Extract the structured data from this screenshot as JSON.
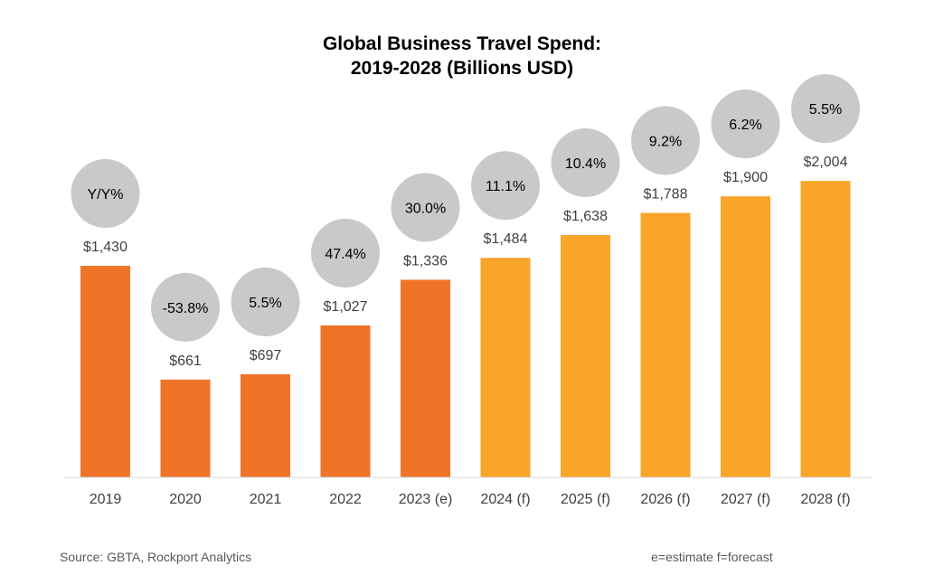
{
  "chart_data": {
    "type": "bar",
    "title_line1": "Global Business Travel Spend:",
    "title_line2": "2019-2028 (Billions USD)",
    "categories": [
      "2019",
      "2020",
      "2021",
      "2022",
      "2023 (e)",
      "2024 (f)",
      "2025 (f)",
      "2026 (f)",
      "2027 (f)",
      "2028 (f)"
    ],
    "values": [
      1430,
      661,
      697,
      1027,
      1336,
      1484,
      1638,
      1788,
      1900,
      2004
    ],
    "value_labels": [
      "$1,430",
      "$661",
      "$697",
      "$1,027",
      "$1,336",
      "$1,484",
      "$1,638",
      "$1,788",
      "$1,900",
      "$2,004"
    ],
    "yoy_labels": [
      "Y/Y%",
      "-53.8%",
      "5.5%",
      "47.4%",
      "30.0%",
      "11.1%",
      "10.4%",
      "9.2%",
      "6.2%",
      "5.5%"
    ],
    "bar_types": [
      "actual",
      "actual",
      "actual",
      "actual",
      "actual",
      "forecast",
      "forecast",
      "forecast",
      "forecast",
      "forecast"
    ],
    "colors": {
      "actual": "#F07427",
      "forecast": "#F9A52A",
      "bubble": "#C9C9C9",
      "axis": "#D9D9D9"
    },
    "ylim": [
      0,
      2100
    ],
    "xlabel": "",
    "ylabel": "",
    "grid": false
  },
  "footer": {
    "source": "Source: GBTA, Rockport Analytics",
    "legend_note": "e=estimate f=forecast"
  }
}
